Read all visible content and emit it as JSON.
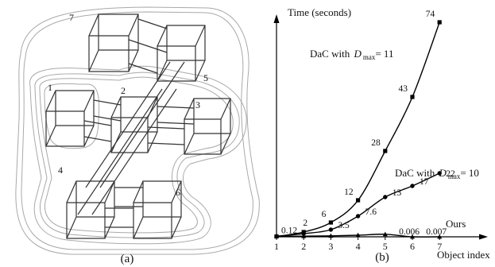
{
  "panel_a": {
    "caption": "(a)",
    "region_labels": [
      "1",
      "2",
      "3",
      "4",
      "5",
      "6",
      "7"
    ]
  },
  "panel_b": {
    "caption": "(b)"
  },
  "chart_data": {
    "type": "line",
    "title": "",
    "xlabel": "Object index",
    "ylabel": "Time (seconds)",
    "x": [
      1,
      2,
      3,
      4,
      5,
      6,
      7
    ],
    "x_tick_labels": [
      "1",
      "2",
      "3",
      "4",
      "5",
      "6",
      "7"
    ],
    "y_scale": "unlabeled, non-linear",
    "grid": false,
    "series": [
      {
        "label_prefix": "DaC with ",
        "label_symbol": "D",
        "label_subscript": "max",
        "label_suffix": "= 11",
        "marker": "square",
        "color": "#000000",
        "values": [
          0.12,
          2,
          6,
          12,
          28,
          43,
          74
        ],
        "value_labels": [
          "0.12",
          "2",
          "6",
          "12",
          "28",
          "43",
          "74"
        ]
      },
      {
        "label_prefix": "DaC with ",
        "label_symbol": "D",
        "label_subscript": "max",
        "label_suffix": "= 10",
        "marker": "circle",
        "color": "#000000",
        "values": [
          0.12,
          1,
          3.5,
          7.6,
          13,
          17,
          22
        ],
        "value_labels": [
          "",
          "",
          "3.5",
          "7.6",
          "13",
          "17",
          "22"
        ]
      },
      {
        "label": "Ours",
        "marker": "triangle",
        "color": "#000000",
        "values": [
          0.12,
          0.2,
          0.3,
          0.5,
          0.8,
          0.006,
          0.007
        ],
        "value_labels": [
          "",
          "",
          "",
          "",
          "",
          "0.006",
          "0.007"
        ]
      }
    ]
  }
}
